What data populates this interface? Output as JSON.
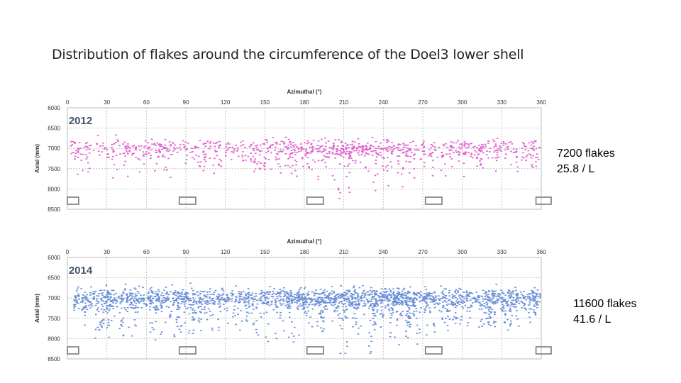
{
  "title": "Distribution of flakes around the circumference of the Doel3 lower shell",
  "chart_data": [
    {
      "type": "scatter",
      "year": "2012",
      "xlabel": "Azimuthal (°)",
      "ylabel": "Axial (mm)",
      "xlim": [
        0,
        360
      ],
      "ylim": [
        8500,
        6000
      ],
      "xticks": [
        "0",
        "30",
        "60",
        "90",
        "120",
        "150",
        "180",
        "210",
        "240",
        "270",
        "300",
        "330",
        "360"
      ],
      "yticks": [
        "6000",
        "6500",
        "7000",
        "7500",
        "8000",
        "8500"
      ],
      "grid": true,
      "color": "#e060cc",
      "density_profile": [
        {
          "azimuth": 0,
          "relative_density": 0.35
        },
        {
          "azimuth": 30,
          "relative_density": 0.35
        },
        {
          "azimuth": 60,
          "relative_density": 0.4
        },
        {
          "azimuth": 90,
          "relative_density": 0.35
        },
        {
          "azimuth": 120,
          "relative_density": 0.2
        },
        {
          "azimuth": 150,
          "relative_density": 0.35
        },
        {
          "azimuth": 180,
          "relative_density": 0.6
        },
        {
          "azimuth": 210,
          "relative_density": 0.95
        },
        {
          "azimuth": 240,
          "relative_density": 0.7
        },
        {
          "azimuth": 270,
          "relative_density": 0.35
        },
        {
          "azimuth": 300,
          "relative_density": 0.3
        },
        {
          "azimuth": 330,
          "relative_density": 0.35
        },
        {
          "azimuth": 360,
          "relative_density": 0.35
        }
      ],
      "main_band_axial_mm": [
        6700,
        7300
      ],
      "flake_count": "7200 flakes",
      "flake_density": "25.8 / L"
    },
    {
      "type": "scatter",
      "year": "2014",
      "xlabel": "Azimuthal (°)",
      "ylabel": "Axial (mm)",
      "xlim": [
        0,
        360
      ],
      "ylim": [
        8500,
        6000
      ],
      "xticks": [
        "0",
        "30",
        "60",
        "90",
        "120",
        "150",
        "180",
        "210",
        "240",
        "270",
        "300",
        "330",
        "360"
      ],
      "yticks": [
        "6000",
        "6500",
        "7000",
        "7500",
        "8000",
        "8500"
      ],
      "grid": true,
      "color": "#6a8fd8",
      "density_profile": [
        {
          "azimuth": 0,
          "relative_density": 0.6
        },
        {
          "azimuth": 30,
          "relative_density": 0.6
        },
        {
          "azimuth": 60,
          "relative_density": 0.6
        },
        {
          "azimuth": 90,
          "relative_density": 0.6
        },
        {
          "azimuth": 120,
          "relative_density": 0.4
        },
        {
          "azimuth": 150,
          "relative_density": 0.55
        },
        {
          "azimuth": 180,
          "relative_density": 0.85
        },
        {
          "azimuth": 210,
          "relative_density": 1.0
        },
        {
          "azimuth": 240,
          "relative_density": 0.9
        },
        {
          "azimuth": 270,
          "relative_density": 0.65
        },
        {
          "azimuth": 300,
          "relative_density": 0.55
        },
        {
          "azimuth": 330,
          "relative_density": 0.6
        },
        {
          "azimuth": 360,
          "relative_density": 0.6
        }
      ],
      "main_band_axial_mm": [
        6700,
        7300
      ],
      "flake_count": "11600 flakes",
      "flake_density": "41.6 / L"
    }
  ]
}
